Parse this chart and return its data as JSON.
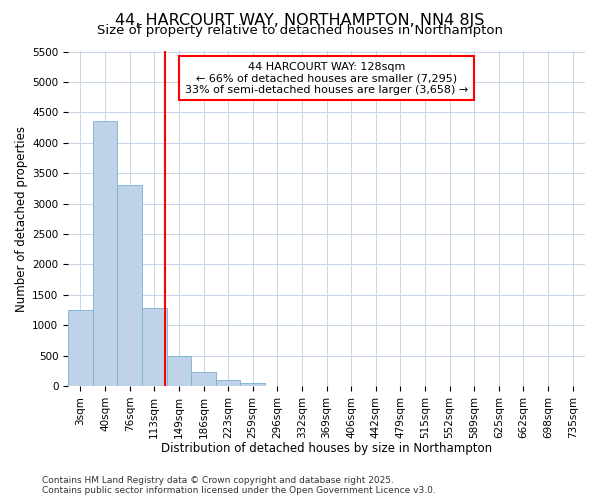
{
  "title_line1": "44, HARCOURT WAY, NORTHAMPTON, NN4 8JS",
  "title_line2": "Size of property relative to detached houses in Northampton",
  "xlabel": "Distribution of detached houses by size in Northampton",
  "ylabel": "Number of detached properties",
  "categories": [
    "3sqm",
    "40sqm",
    "76sqm",
    "113sqm",
    "149sqm",
    "186sqm",
    "223sqm",
    "259sqm",
    "296sqm",
    "332sqm",
    "369sqm",
    "406sqm",
    "442sqm",
    "479sqm",
    "515sqm",
    "552sqm",
    "589sqm",
    "625sqm",
    "662sqm",
    "698sqm",
    "735sqm"
  ],
  "bar_values": [
    1250,
    4350,
    3300,
    1280,
    500,
    230,
    100,
    50,
    0,
    0,
    0,
    0,
    0,
    0,
    0,
    0,
    0,
    0,
    0,
    0,
    0
  ],
  "bar_color": "#bed3e8",
  "bar_edge_color": "#7aafd4",
  "ylim": [
    0,
    5500
  ],
  "yticks": [
    0,
    500,
    1000,
    1500,
    2000,
    2500,
    3000,
    3500,
    4000,
    4500,
    5000,
    5500
  ],
  "annotation_title": "44 HARCOURT WAY: 128sqm",
  "annotation_line1": "← 66% of detached houses are smaller (7,295)",
  "annotation_line2": "33% of semi-detached houses are larger (3,658) →",
  "footer_line1": "Contains HM Land Registry data © Crown copyright and database right 2025.",
  "footer_line2": "Contains public sector information licensed under the Open Government Licence v3.0.",
  "background_color": "#ffffff",
  "grid_color": "#c8d4e8",
  "title_fontsize": 11.5,
  "subtitle_fontsize": 9.5,
  "axis_label_fontsize": 8.5,
  "tick_fontsize": 7.5,
  "annotation_fontsize": 8,
  "footer_fontsize": 6.5
}
